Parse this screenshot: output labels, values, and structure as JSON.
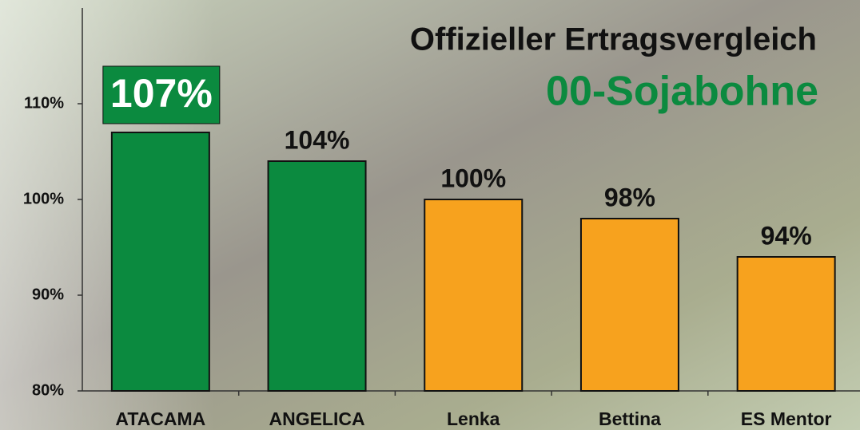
{
  "chart_data": {
    "type": "bar",
    "title": "Offizieller Ertragsvergleich",
    "subtitle": "00-Sojabohne",
    "categories": [
      "ATACAMA",
      "ANGELICA",
      "Lenka",
      "Bettina",
      "ES Mentor"
    ],
    "values": [
      107,
      104,
      100,
      98,
      94
    ],
    "value_labels": [
      "107%",
      "104%",
      "100%",
      "98%",
      "94%"
    ],
    "colors": [
      "#0b8a3f",
      "#0b8a3f",
      "#f7a21e",
      "#f7a21e",
      "#f7a21e"
    ],
    "label_box": [
      true,
      false,
      false,
      false,
      false
    ],
    "ylim": [
      80,
      120
    ],
    "yticks": [
      {
        "value": 80,
        "label": "80%"
      },
      {
        "value": 90,
        "label": "90%"
      },
      {
        "value": 100,
        "label": "100%"
      },
      {
        "value": 110,
        "label": "110%"
      }
    ],
    "grid": false
  }
}
